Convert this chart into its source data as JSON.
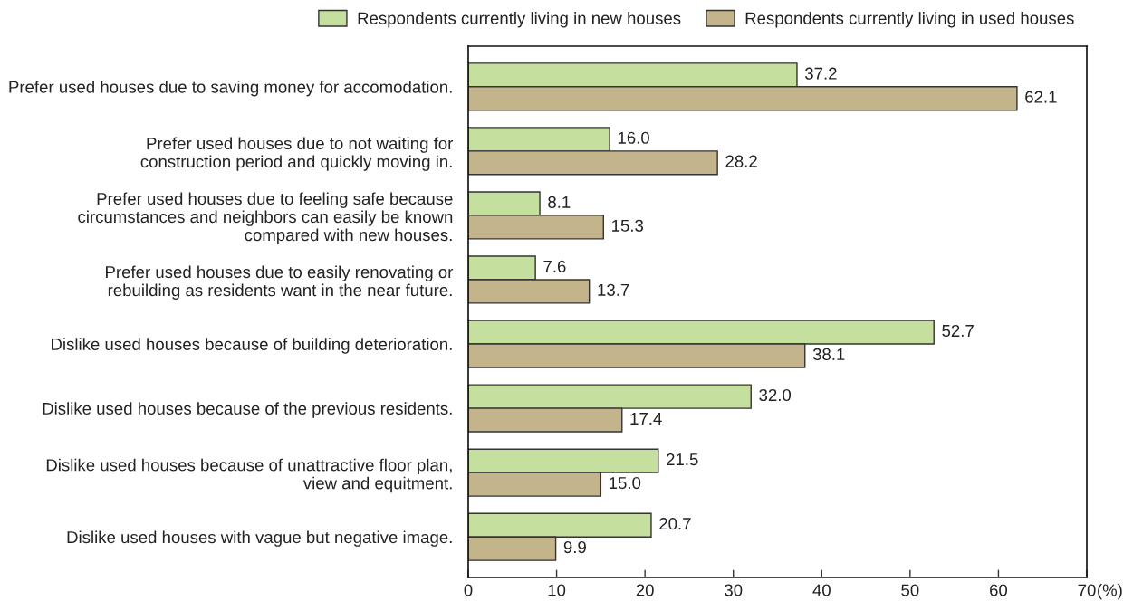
{
  "chart_data": {
    "type": "bar",
    "orientation": "horizontal",
    "categories": [
      "Prefer used houses due to saving money for accomodation.",
      "Prefer used houses due to not waiting for\nconstruction period and quickly moving in.",
      "Prefer used houses due to feeling safe because\ncircumstances and neighbors can easily be known\ncompared with new houses.",
      "Prefer used houses due to easily renovating or\nrebuilding as residents want in the near future.",
      "Dislike used houses because of building deterioration.",
      "Dislike used houses because of the previous residents.",
      "Dislike used houses because of unattractive floor plan,\nview and equitment.",
      "Dislike used houses with vague but negative image."
    ],
    "series": [
      {
        "name": "Respondents currently living in new houses",
        "color": "#c5df9e",
        "values": [
          37.2,
          16.0,
          8.1,
          7.6,
          52.7,
          32.0,
          21.5,
          20.7
        ],
        "value_labels": [
          "37.2",
          "16.0",
          "8.1",
          "7.6",
          "52.7",
          "32.0",
          "21.5",
          "20.7"
        ]
      },
      {
        "name": "Respondents currently living in used houses",
        "color": "#c4b48b",
        "values": [
          62.1,
          28.2,
          15.3,
          13.7,
          38.1,
          17.4,
          15.0,
          9.9
        ],
        "value_labels": [
          "62.1",
          "28.2",
          "15.3",
          "13.7",
          "38.1",
          "17.4",
          "15.0",
          "9.9"
        ]
      }
    ],
    "xlim": [
      0,
      70
    ],
    "xticks": [
      0,
      10,
      20,
      30,
      40,
      50,
      60,
      70
    ],
    "xlabel": "(%)",
    "legend": "top"
  }
}
